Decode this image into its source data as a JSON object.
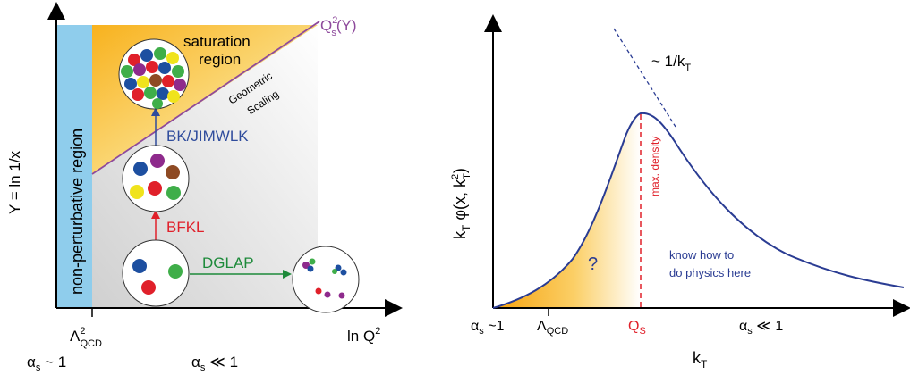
{
  "left_panel": {
    "y_axis_label": "Y = ln 1/x",
    "x_axis_label": "ln Q",
    "x_axis_label_sup": "2",
    "lambda_symbol": "Λ",
    "lambda_sub": "QCD",
    "lambda_sup": "2",
    "alpha_low": "α",
    "alpha_low_sub": "s",
    "alpha_low_rest": " ~ 1",
    "alpha_high": "α",
    "alpha_high_sub": "s",
    "alpha_high_rest": " ≪ 1",
    "nonperturbative_label": "non-perturbative region",
    "saturation_label_line1": "saturation",
    "saturation_label_line2": "region",
    "saturation_line_Q": "Q",
    "saturation_line_sub": "s",
    "saturation_line_sup": "2",
    "saturation_line_rest": "(Y)",
    "geometric_line1": "Geometric",
    "geometric_line2": "Scaling",
    "bk_label": "BK/JIMWLK",
    "bfkl_label": "BFKL",
    "dglap_label": "DGLAP"
  },
  "right_panel": {
    "y_axis_k": "k",
    "y_axis_sub": "T",
    "y_axis_phi": " φ(x, k",
    "y_axis_phi_sub": "T",
    "y_axis_phi_sup": "2",
    "y_axis_close": ")",
    "x_axis_k": "k",
    "x_axis_sub": "T",
    "tail_label": "~ 1/k",
    "tail_label_sub": "T",
    "max_density_label": "max. density",
    "question_mark": "?",
    "know_line1": "know how to",
    "know_line2": "do physics here",
    "tick_alpha_low": "α",
    "tick_alpha_low_sub": "s",
    "tick_alpha_low_rest": " ~1",
    "tick_lambda": "Λ",
    "tick_lambda_sub": "QCD",
    "tick_qs": "Q",
    "tick_qs_sub": "S",
    "tick_alpha_high": "α",
    "tick_alpha_high_sub": "s",
    "tick_alpha_high_rest": " ≪ 1"
  },
  "colors": {
    "nonperturbative_blue": "#8fcdec",
    "saturation_orange": "#f8b21e",
    "saturation_line": "#8e4a9c",
    "bk_blue": "#2f4c9c",
    "bfkl_red": "#e0202a",
    "dglap_green": "#1d8a3a",
    "curve_blue": "#2a3c93",
    "max_density_red": "#e0202a"
  }
}
